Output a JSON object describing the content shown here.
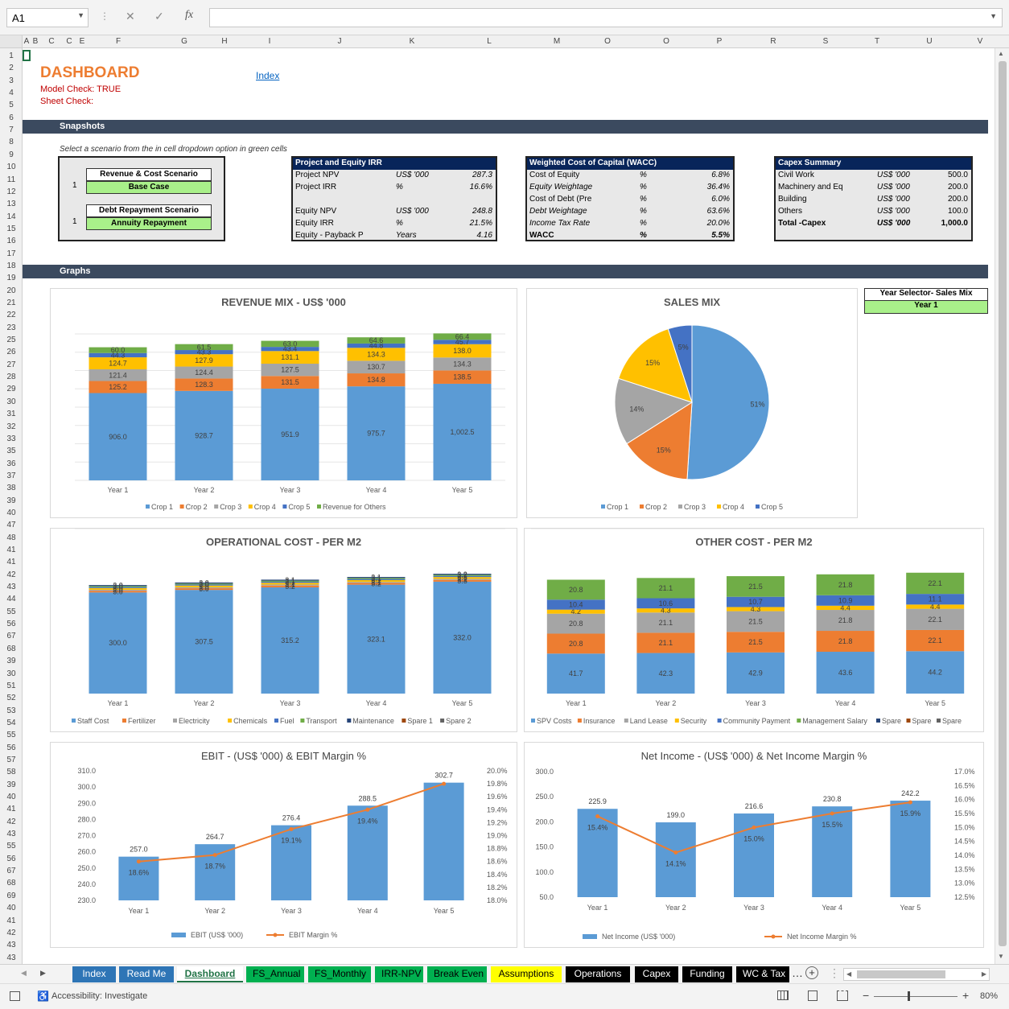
{
  "formula_bar": {
    "cell_ref": "A1",
    "cancel_icon": "✕",
    "enter_icon": "✓",
    "fx_label": "fx",
    "formula": ""
  },
  "columns": [
    "A",
    "B",
    "C",
    "C",
    "E",
    "F",
    "G",
    "H",
    "I",
    "J",
    "K",
    "L",
    "M",
    "O",
    "O",
    "P",
    "R",
    "S",
    "T",
    "U",
    "V"
  ],
  "rows": [
    "1",
    "2",
    "3",
    "4",
    "5",
    "6",
    "7",
    "8",
    "9",
    "10",
    "11",
    "12",
    "13",
    "14",
    "15",
    "16",
    "17",
    "18",
    "19",
    "20",
    "21",
    "22",
    "23",
    "25",
    "26",
    "27",
    "28",
    "29",
    "30",
    "31",
    "32",
    "33",
    "35",
    "36",
    "37",
    "38",
    "39",
    "40",
    "47",
    "48",
    "41",
    "41",
    "42",
    "43",
    "44",
    "55",
    "56",
    "67",
    "68",
    "39",
    "30",
    "51",
    "52",
    "53",
    "54",
    "55",
    "56",
    "57",
    "58",
    "39",
    "40",
    "41",
    "42",
    "43",
    "55",
    "56",
    "67",
    "68",
    "69",
    "40",
    "41",
    "42",
    "43",
    "43"
  ],
  "header": {
    "title": "DASHBOARD",
    "model_check": "Model Check: TRUE",
    "sheet_check": "Sheet Check:",
    "index_link": "Index"
  },
  "sections": {
    "snapshots": "Snapshots",
    "graphs": "Graphs"
  },
  "scenario_hint": "Select a scenario from the in cell dropdown option in green cells",
  "scenarios": [
    {
      "number": "1",
      "label": "Revenue & Cost Scenario",
      "value": "Base Case"
    },
    {
      "number": "1",
      "label": "Debt Repayment Scenario",
      "value": "Annuity Repayment"
    }
  ],
  "irr_table": {
    "title": "Project and Equity IRR",
    "rows": [
      {
        "label": "Project NPV",
        "unit": "US$ '000",
        "value": "287.3"
      },
      {
        "label": "Project IRR",
        "unit": "%",
        "value": "16.6%"
      },
      {
        "label": "",
        "unit": "",
        "value": ""
      },
      {
        "label": "Equity NPV",
        "unit": "US$ '000",
        "value": "248.8"
      },
      {
        "label": "Equity IRR",
        "unit": "%",
        "value": "21.5%"
      },
      {
        "label": "Equity - Payback P",
        "unit": "Years",
        "value": "4.16"
      }
    ]
  },
  "wacc_table": {
    "title": "Weighted Cost of Capital (WACC)",
    "rows": [
      {
        "label": "Cost of Equity",
        "unit": "%",
        "value": "6.8%"
      },
      {
        "label": "Equity Weightage",
        "unit": "%",
        "value": "36.4%"
      },
      {
        "label": "Cost of Debt (Pre",
        "unit": "%",
        "value": "6.0%"
      },
      {
        "label": "Debt Weightage",
        "unit": "%",
        "value": "63.6%"
      },
      {
        "label": "Income Tax Rate",
        "unit": "%",
        "value": "20.0%"
      },
      {
        "label": "WACC",
        "unit": "%",
        "value": "5.5%"
      }
    ]
  },
  "capex_table": {
    "title": "Capex Summary",
    "rows": [
      {
        "label": "Civil Work",
        "unit": "US$ '000",
        "value": "500.0"
      },
      {
        "label": "Machinery and Eq",
        "unit": "US$ '000",
        "value": "200.0"
      },
      {
        "label": "Building",
        "unit": "US$ '000",
        "value": "200.0"
      },
      {
        "label": "Others",
        "unit": "US$ '000",
        "value": "100.0"
      },
      {
        "label": "Total -Capex",
        "unit": "US$ '000",
        "value": "1,000.0"
      }
    ]
  },
  "year_selector": {
    "label": "Year Selector- Sales Mix",
    "value": "Year 1"
  },
  "colors": {
    "accent_orange": "#ed7d31",
    "band": "#3b4a5f",
    "table_header": "#08255a",
    "green_cell": "#a9f08a",
    "blue": "#5b9bd5",
    "orange": "#ed7d31",
    "gray": "#a5a5a5",
    "yellow": "#ffc000",
    "darkblue": "#4472c4",
    "green": "#70ad47",
    "dkgray": "#636363",
    "brown": "#9e480e"
  },
  "chart_data": [
    {
      "type": "bar",
      "stacked": true,
      "title": "REVENUE MIX - US$ '000",
      "categories": [
        "Year 1",
        "Year 2",
        "Year 3",
        "Year 4",
        "Year 5"
      ],
      "series": [
        {
          "name": "Crop 1",
          "values": [
            906.0,
            928.7,
            951.9,
            975.7,
            1002.5
          ],
          "color": "#5b9bd5"
        },
        {
          "name": "Crop 2",
          "values": [
            125.2,
            128.3,
            131.5,
            134.8,
            138.5
          ],
          "color": "#ed7d31"
        },
        {
          "name": "Crop 3",
          "values": [
            121.4,
            124.4,
            127.5,
            130.7,
            134.3
          ],
          "color": "#a5a5a5"
        },
        {
          "name": "Crop 4",
          "values": [
            124.7,
            127.9,
            131.1,
            134.3,
            138.0
          ],
          "color": "#ffc000"
        },
        {
          "name": "Crop 5",
          "values": [
            44.3,
            43.3,
            43.4,
            44.8,
            45.7
          ],
          "color": "#4472c4"
        },
        {
          "name": "Revenue for Others",
          "values": [
            60.0,
            61.5,
            63.0,
            64.6,
            66.4
          ],
          "color": "#70ad47"
        }
      ],
      "labels": [
        [
          "906.0",
          "125.2",
          "121.4",
          "124.7",
          "44.3",
          "60.0"
        ],
        [
          "928.7",
          "128.3",
          "124.4",
          "127.9",
          "43.3",
          "61.5"
        ],
        [
          "951.9",
          "131.5",
          "127.5",
          "131.1",
          "43.4",
          "63.0"
        ],
        [
          "975.7",
          "134.8",
          "130.7",
          "134.3",
          "44.8",
          "64.6"
        ],
        [
          "1,002.5",
          "138.5",
          "134.3",
          "138.0",
          "45.7",
          "66.4"
        ]
      ]
    },
    {
      "type": "pie",
      "title": "SALES MIX",
      "categories": [
        "Crop 1",
        "Crop 2",
        "Crop 3",
        "Crop 4",
        "Crop 5"
      ],
      "values": [
        51,
        15,
        14,
        15,
        5
      ],
      "labels": [
        "51%",
        "15%",
        "14%",
        "15%",
        "5%"
      ],
      "colors": [
        "#5b9bd5",
        "#ed7d31",
        "#a5a5a5",
        "#ffc000",
        "#4472c4"
      ]
    },
    {
      "type": "bar",
      "stacked": true,
      "title": "OPERATIONAL COST - PER M2",
      "categories": [
        "Year 1",
        "Year 2",
        "Year 3",
        "Year 4",
        "Year 5"
      ],
      "series": [
        {
          "name": "Staff Cost",
          "values": [
            300.0,
            307.5,
            315.2,
            323.1,
            332.0
          ],
          "color": "#5b9bd5"
        },
        {
          "name": "Fertilizer",
          "values": [
            5.0,
            5.0,
            5.2,
            5.2,
            5.3
          ],
          "color": "#ed7d31"
        },
        {
          "name": "Electricity",
          "values": [
            3.0,
            3.0,
            3.1,
            3.1,
            3.2
          ],
          "color": "#a5a5a5"
        },
        {
          "name": "Chemicals",
          "values": [
            5.0,
            5.0,
            5.2,
            5.2,
            5.3
          ],
          "color": "#ffc000"
        },
        {
          "name": "Fuel",
          "values": [
            3.0,
            3.0,
            3.1,
            3.1,
            3.2
          ],
          "color": "#4472c4"
        },
        {
          "name": "Transport",
          "values": [
            3.0,
            3.0,
            3.1,
            3.1,
            3.2
          ],
          "color": "#70ad47"
        },
        {
          "name": "Maintenance",
          "values": [
            3.0,
            3.0,
            3.1,
            3.1,
            3.2
          ],
          "color": "#264478"
        },
        {
          "name": "Spare 1",
          "values": [
            0,
            0,
            0,
            0,
            0
          ],
          "color": "#9e480e"
        },
        {
          "name": "Spare 2",
          "values": [
            0,
            0,
            0,
            0,
            0
          ],
          "color": "#636363"
        }
      ],
      "labels": [
        [
          "300.0",
          "5.0",
          "3.0",
          "5.0",
          "3.0",
          "3.0",
          "3.0",
          "",
          ""
        ],
        [
          "307.5",
          "5.0",
          "3.0",
          "5.0",
          "3.0",
          "3.0",
          "3.0",
          "",
          ""
        ],
        [
          "315.2",
          "5.2",
          "3.1",
          "5.2",
          "3.1",
          "3.1",
          "3.1",
          "",
          ""
        ],
        [
          "323.1",
          "5.2",
          "3.1",
          "5.2",
          "3.1",
          "3.1",
          "3.1",
          "",
          ""
        ],
        [
          "332.0",
          "5.3",
          "3.2",
          "5.3",
          "3.2",
          "3.2",
          "3.2",
          "",
          ""
        ]
      ]
    },
    {
      "type": "bar",
      "stacked": true,
      "title": "OTHER COST - PER M2",
      "categories": [
        "Year 1",
        "Year 2",
        "Year 3",
        "Year 4",
        "Year 5"
      ],
      "series": [
        {
          "name": "SPV Costs",
          "values": [
            41.7,
            42.3,
            42.9,
            43.6,
            44.2
          ],
          "color": "#5b9bd5"
        },
        {
          "name": "Insurance",
          "values": [
            20.8,
            21.1,
            21.5,
            21.8,
            22.1
          ],
          "color": "#ed7d31"
        },
        {
          "name": "Land Lease",
          "values": [
            20.8,
            21.1,
            21.5,
            21.8,
            22.1
          ],
          "color": "#a5a5a5"
        },
        {
          "name": "Security",
          "values": [
            4.2,
            4.3,
            4.3,
            4.4,
            4.4
          ],
          "color": "#ffc000"
        },
        {
          "name": "Community Payment",
          "values": [
            10.4,
            10.6,
            10.7,
            10.9,
            11.1
          ],
          "color": "#4472c4"
        },
        {
          "name": "Management Salary",
          "values": [
            20.8,
            21.1,
            21.5,
            21.8,
            22.1
          ],
          "color": "#70ad47"
        },
        {
          "name": "Spare",
          "values": [
            0,
            0,
            0,
            0,
            0
          ],
          "color": "#264478"
        },
        {
          "name": "Spare",
          "values": [
            0,
            0,
            0,
            0,
            0
          ],
          "color": "#9e480e"
        },
        {
          "name": "Spare",
          "values": [
            0,
            0,
            0,
            0,
            0
          ],
          "color": "#636363"
        }
      ],
      "labels": [
        [
          "41.7",
          "20.8",
          "20.8",
          "4.2",
          "10.4",
          "20.8",
          "",
          "",
          ""
        ],
        [
          "42.3",
          "21.1",
          "21.1",
          "4.3",
          "10.6",
          "21.1",
          "",
          "",
          ""
        ],
        [
          "42.9",
          "21.5",
          "21.5",
          "4.3",
          "10.7",
          "21.5",
          "",
          "",
          ""
        ],
        [
          "43.6",
          "21.8",
          "21.8",
          "4.4",
          "10.9",
          "21.8",
          "",
          "",
          ""
        ],
        [
          "44.2",
          "22.1",
          "22.1",
          "4.4",
          "11.1",
          "22.1",
          "",
          "",
          ""
        ]
      ]
    },
    {
      "type": "bar+line",
      "title": "EBIT - (US$ '000) & EBIT Margin %",
      "categories": [
        "Year 1",
        "Year 2",
        "Year 3",
        "Year 4",
        "Year 5"
      ],
      "bars": {
        "name": "EBIT (US$ '000)",
        "values": [
          257.0,
          264.7,
          276.4,
          288.5,
          302.7
        ],
        "labels": [
          "257.0",
          "264.7",
          "276.4",
          "288.5",
          "302.7"
        ]
      },
      "line": {
        "name": "EBIT Margin %",
        "values": [
          18.6,
          18.7,
          19.1,
          19.4,
          19.8
        ],
        "labels": [
          "18.6%",
          "18.7%",
          "19.1%",
          "19.4%",
          ""
        ]
      },
      "ylim": [
        230,
        310
      ],
      "yticks": [
        "310.0",
        "300.0",
        "290.0",
        "280.0",
        "270.0",
        "260.0",
        "250.0",
        "240.0",
        "230.0"
      ],
      "y2lim": [
        18.0,
        20.0
      ],
      "y2ticks": [
        "20.0%",
        "19.8%",
        "19.6%",
        "19.4%",
        "19.2%",
        "19.0%",
        "18.8%",
        "18.6%",
        "18.4%",
        "18.2%",
        "18.0%"
      ]
    },
    {
      "type": "bar+line",
      "title": "Net Income - (US$ '000) & Net Income Margin %",
      "categories": [
        "Year 1",
        "Year 2",
        "Year 3",
        "Year 4",
        "Year 5"
      ],
      "bars": {
        "name": "Net Income (US$ '000)",
        "values": [
          225.9,
          199.0,
          216.6,
          230.8,
          242.2
        ],
        "labels": [
          "225.9",
          "199.0",
          "216.6",
          "230.8",
          "242.2"
        ]
      },
      "line": {
        "name": "Net Income Margin %",
        "values": [
          15.4,
          14.1,
          15.0,
          15.5,
          15.9
        ],
        "labels": [
          "15.4%",
          "14.1%",
          "15.0%",
          "15.5%",
          "15.9%"
        ]
      },
      "ylim": [
        50,
        300
      ],
      "yticks": [
        "300.0",
        "250.0",
        "200.0",
        "150.0",
        "100.0",
        "50.0"
      ],
      "y2lim": [
        12.5,
        17.0
      ],
      "y2ticks": [
        "17.0%",
        "16.5%",
        "16.0%",
        "15.5%",
        "15.0%",
        "14.5%",
        "14.0%",
        "13.5%",
        "13.0%",
        "12.5%"
      ]
    }
  ],
  "sheet_tabs": [
    {
      "label": "Index",
      "bg": "#2e75b6",
      "fg": "#ffffff"
    },
    {
      "label": "Read Me",
      "bg": "#2e75b6",
      "fg": "#ffffff"
    },
    {
      "label": "Dashboard",
      "bg": "#ffffff",
      "fg": "#217346"
    },
    {
      "label": "FS_Annual",
      "bg": "#00b050",
      "fg": "#000000"
    },
    {
      "label": "FS_Monthly",
      "bg": "#00b050",
      "fg": "#000000"
    },
    {
      "label": "IRR-NPV",
      "bg": "#00b050",
      "fg": "#000000"
    },
    {
      "label": "Break Even",
      "bg": "#00b050",
      "fg": "#000000"
    },
    {
      "label": "Assumptions",
      "bg": "#ffff00",
      "fg": "#000000"
    },
    {
      "label": "Operations",
      "bg": "#000000",
      "fg": "#ffffff"
    },
    {
      "label": "Capex",
      "bg": "#000000",
      "fg": "#ffffff"
    },
    {
      "label": "Funding",
      "bg": "#000000",
      "fg": "#ffffff"
    },
    {
      "label": "WC & Tax",
      "bg": "#000000",
      "fg": "#ffffff"
    }
  ],
  "status": {
    "accessibility": "Accessibility: Investigate",
    "zoom": "80%"
  }
}
